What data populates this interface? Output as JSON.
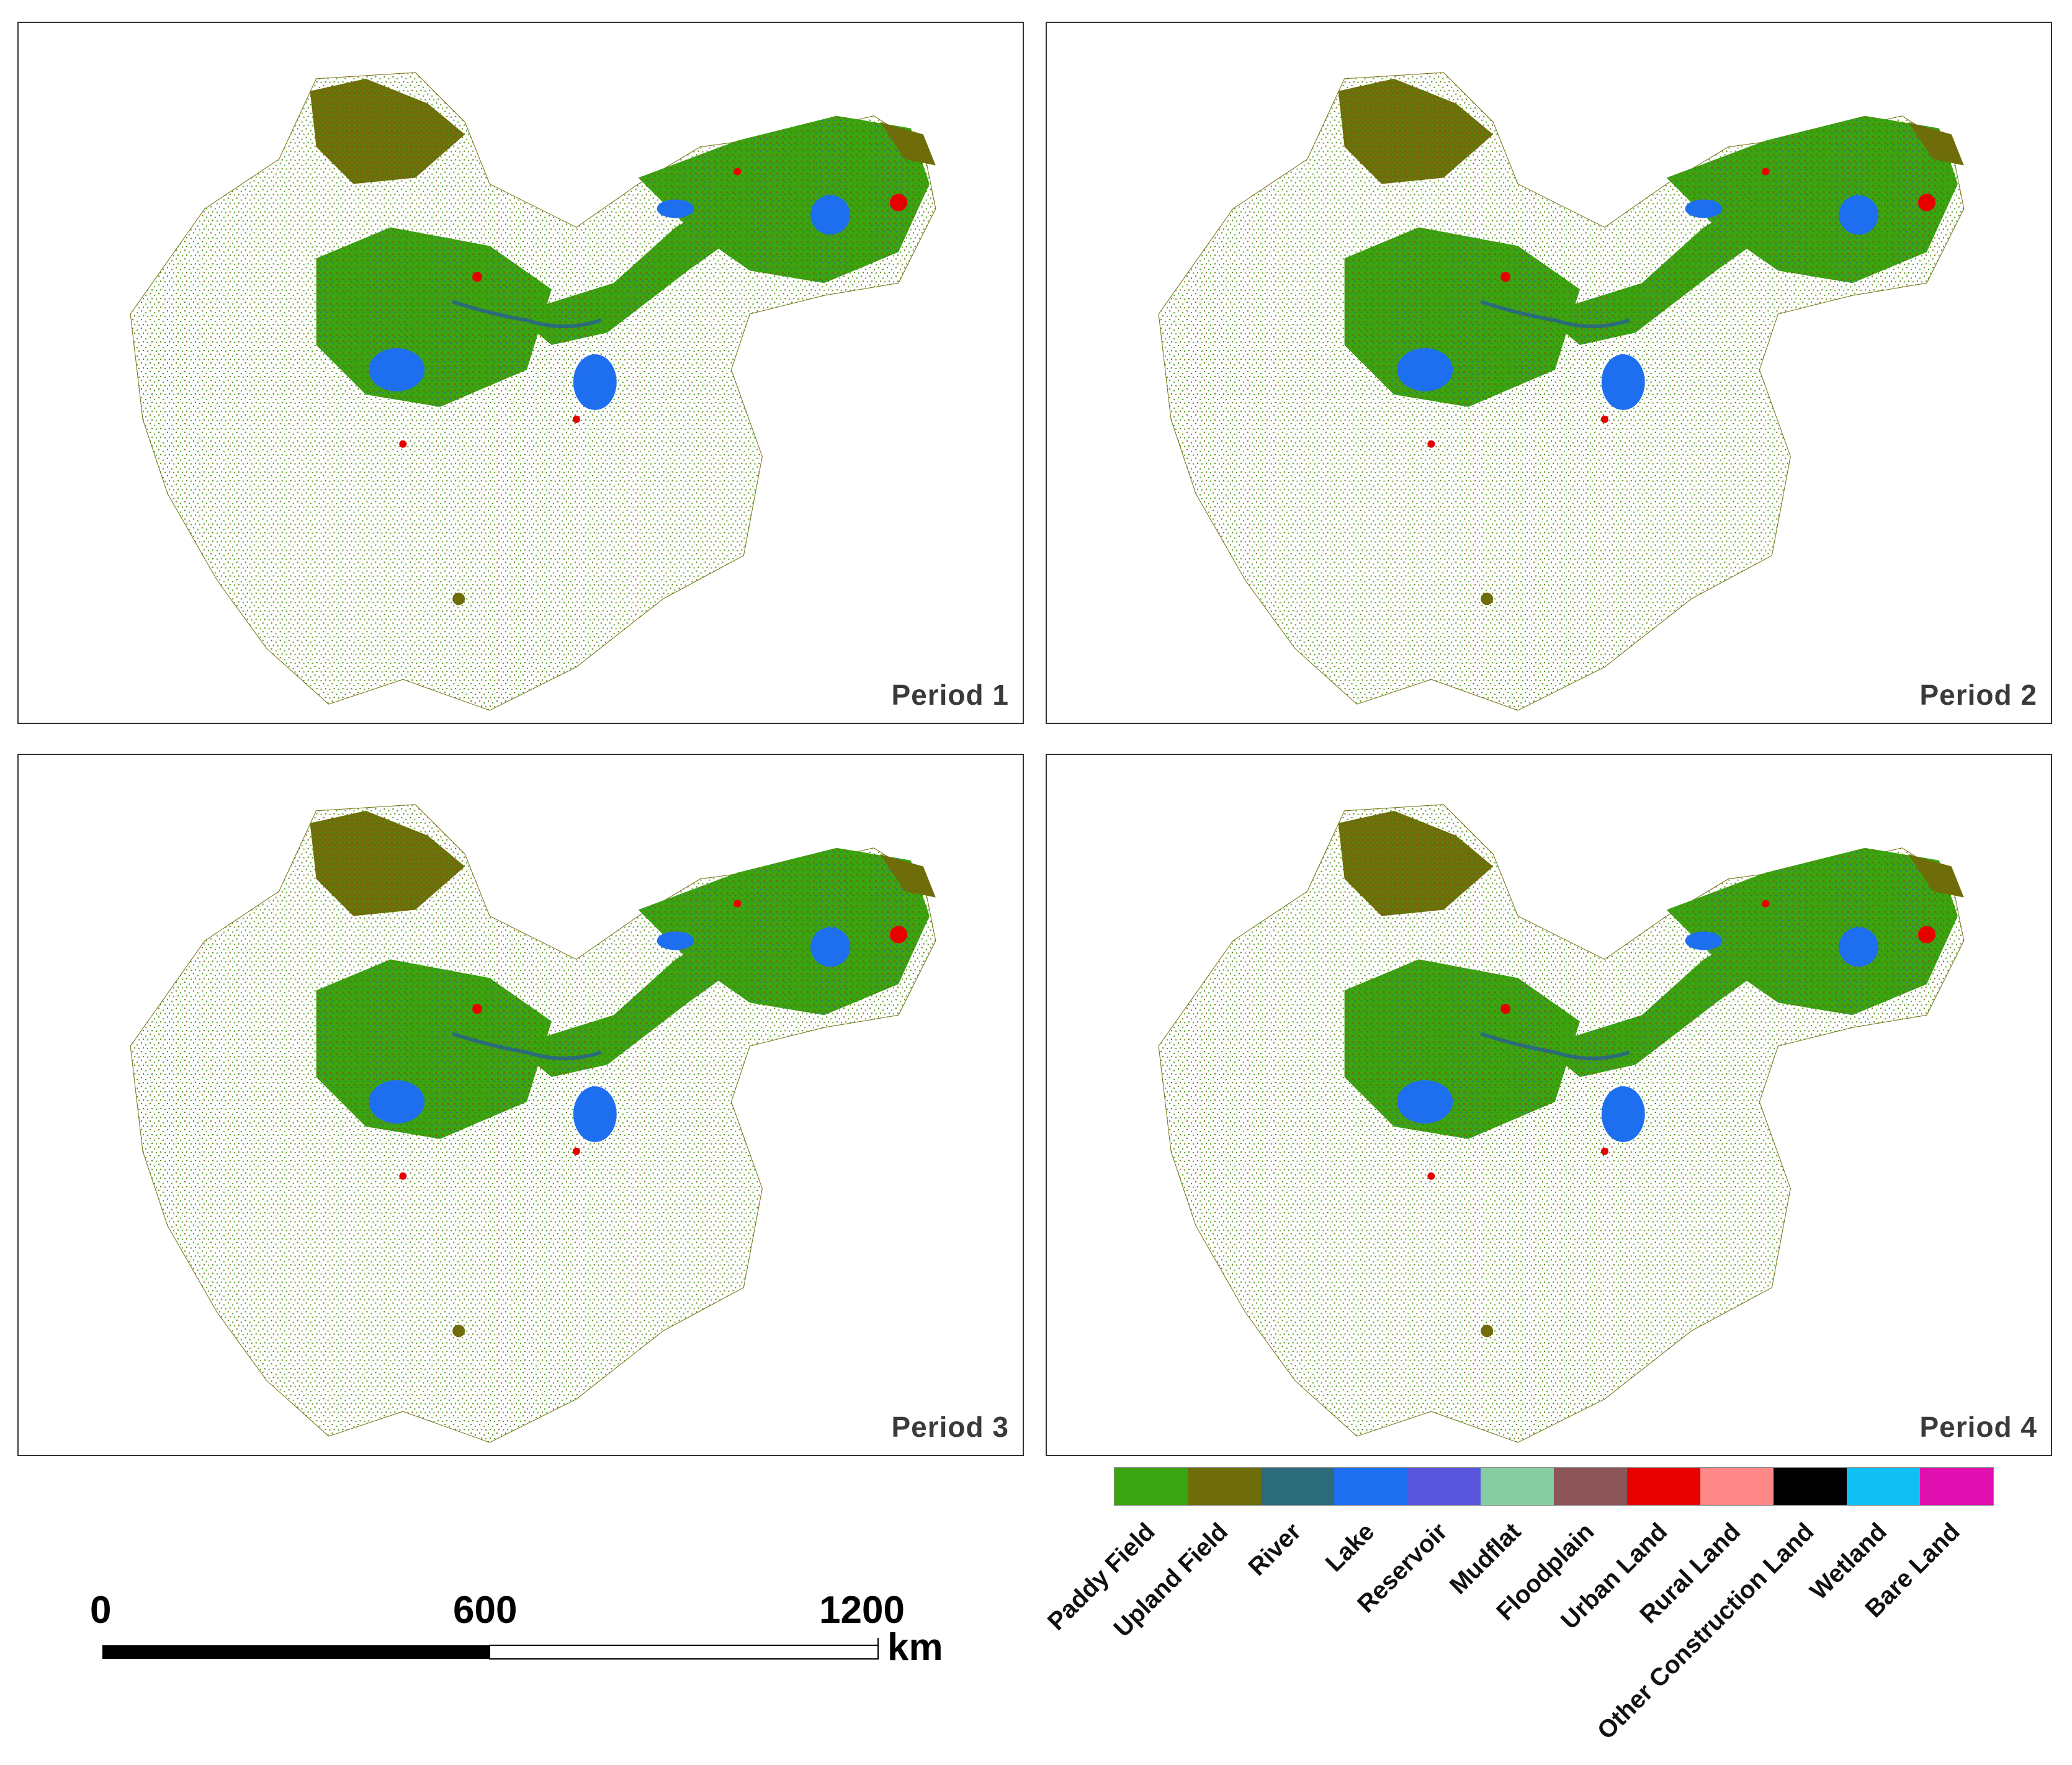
{
  "panels": [
    {
      "label": "Period 1"
    },
    {
      "label": "Period 2"
    },
    {
      "label": "Period 3"
    },
    {
      "label": "Period 4"
    }
  ],
  "legend": [
    {
      "label": "Paddy Field",
      "color": "#3aa510"
    },
    {
      "label": "Upland Field",
      "color": "#6e6d0a"
    },
    {
      "label": "River",
      "color": "#2b6b7a"
    },
    {
      "label": "Lake",
      "color": "#1e6ff0"
    },
    {
      "label": "Reservoir",
      "color": "#5a55dd"
    },
    {
      "label": "Mudflat",
      "color": "#85cda0"
    },
    {
      "label": "Floodplain",
      "color": "#8c5558"
    },
    {
      "label": "Urban Land",
      "color": "#e60000"
    },
    {
      "label": "Rural Land",
      "color": "#ff8888"
    },
    {
      "label": "Other Construction Land",
      "color": "#000000"
    },
    {
      "label": "Wetland",
      "color": "#10c0f5"
    },
    {
      "label": "Bare Land",
      "color": "#e010b0"
    }
  ],
  "scale": {
    "ticks": [
      "0",
      "600",
      "1200"
    ],
    "unit": "km"
  }
}
